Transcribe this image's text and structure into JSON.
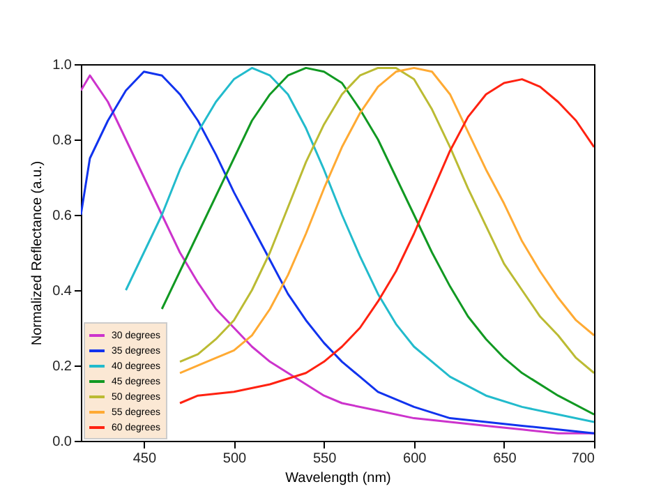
{
  "chart_data": {
    "type": "line",
    "xlabel": "Wavelength (nm)",
    "ylabel": "Normalized Reflectance (a.u.)",
    "xlim": [
      415,
      700
    ],
    "xticks": [
      450,
      500,
      550,
      600,
      650,
      700
    ],
    "ylim": [
      0,
      1
    ],
    "yticks": [
      {
        "value": 0,
        "label": "0.0"
      },
      0.2,
      0.4,
      0.6,
      0.8,
      {
        "value": 1,
        "label": "1.0"
      }
    ],
    "grid": false,
    "legend": "bottom left",
    "line_style": "solid",
    "series": [
      {
        "name": "30 degrees",
        "color": "#cc33cc",
        "x": [
          415,
          420,
          430,
          440,
          450,
          460,
          470,
          480,
          490,
          500,
          510,
          520,
          530,
          540,
          550,
          560,
          580,
          600,
          620,
          640,
          660,
          680,
          700
        ],
        "values": [
          0.93,
          0.97,
          0.9,
          0.8,
          0.7,
          0.6,
          0.5,
          0.42,
          0.35,
          0.3,
          0.25,
          0.21,
          0.18,
          0.15,
          0.12,
          0.1,
          0.08,
          0.06,
          0.05,
          0.04,
          0.03,
          0.02,
          0.02
        ]
      },
      {
        "name": "35 degrees",
        "color": "#1133ee",
        "x": [
          415,
          420,
          430,
          440,
          450,
          460,
          470,
          480,
          490,
          500,
          510,
          520,
          530,
          540,
          550,
          560,
          570,
          580,
          600,
          620,
          640,
          660,
          680,
          700
        ],
        "values": [
          0.6,
          0.75,
          0.85,
          0.93,
          0.98,
          0.97,
          0.92,
          0.85,
          0.76,
          0.66,
          0.57,
          0.48,
          0.39,
          0.32,
          0.26,
          0.21,
          0.17,
          0.13,
          0.09,
          0.06,
          0.05,
          0.04,
          0.03,
          0.02
        ]
      },
      {
        "name": "40 degrees",
        "color": "#22bbcc",
        "x": [
          440,
          450,
          460,
          470,
          480,
          490,
          500,
          510,
          520,
          530,
          540,
          550,
          560,
          570,
          580,
          590,
          600,
          620,
          640,
          660,
          680,
          700
        ],
        "values": [
          0.4,
          0.5,
          0.6,
          0.72,
          0.82,
          0.9,
          0.96,
          0.99,
          0.97,
          0.92,
          0.83,
          0.72,
          0.6,
          0.49,
          0.39,
          0.31,
          0.25,
          0.17,
          0.12,
          0.09,
          0.07,
          0.05
        ]
      },
      {
        "name": "45 degrees",
        "color": "#119922",
        "x": [
          460,
          470,
          480,
          490,
          500,
          510,
          520,
          530,
          540,
          550,
          560,
          570,
          580,
          590,
          600,
          610,
          620,
          630,
          640,
          650,
          660,
          680,
          700
        ],
        "values": [
          0.35,
          0.45,
          0.55,
          0.65,
          0.75,
          0.85,
          0.92,
          0.97,
          0.99,
          0.98,
          0.95,
          0.88,
          0.8,
          0.7,
          0.6,
          0.5,
          0.41,
          0.33,
          0.27,
          0.22,
          0.18,
          0.12,
          0.07
        ]
      },
      {
        "name": "50 degrees",
        "color": "#bbbb33",
        "x": [
          470,
          480,
          490,
          500,
          510,
          520,
          530,
          540,
          550,
          560,
          570,
          580,
          590,
          600,
          610,
          620,
          630,
          640,
          650,
          660,
          670,
          680,
          690,
          700
        ],
        "values": [
          0.21,
          0.23,
          0.27,
          0.32,
          0.4,
          0.5,
          0.62,
          0.74,
          0.84,
          0.92,
          0.97,
          0.99,
          0.99,
          0.96,
          0.88,
          0.78,
          0.67,
          0.57,
          0.47,
          0.4,
          0.33,
          0.28,
          0.22,
          0.18
        ]
      },
      {
        "name": "55 degrees",
        "color": "#ffaa33",
        "x": [
          470,
          490,
          500,
          510,
          520,
          530,
          540,
          550,
          560,
          570,
          580,
          590,
          600,
          610,
          620,
          630,
          640,
          650,
          660,
          670,
          680,
          690,
          700
        ],
        "values": [
          0.18,
          0.22,
          0.24,
          0.28,
          0.35,
          0.44,
          0.55,
          0.67,
          0.78,
          0.87,
          0.94,
          0.98,
          0.99,
          0.98,
          0.92,
          0.82,
          0.72,
          0.63,
          0.53,
          0.45,
          0.38,
          0.32,
          0.28
        ]
      },
      {
        "name": "60 degrees",
        "color": "#ff2211",
        "x": [
          470,
          480,
          500,
          520,
          540,
          550,
          560,
          570,
          580,
          590,
          600,
          610,
          620,
          630,
          640,
          650,
          660,
          670,
          680,
          690,
          700
        ],
        "values": [
          0.1,
          0.12,
          0.13,
          0.15,
          0.18,
          0.21,
          0.25,
          0.3,
          0.37,
          0.45,
          0.55,
          0.66,
          0.77,
          0.86,
          0.92,
          0.95,
          0.96,
          0.94,
          0.9,
          0.85,
          0.78
        ]
      }
    ]
  }
}
